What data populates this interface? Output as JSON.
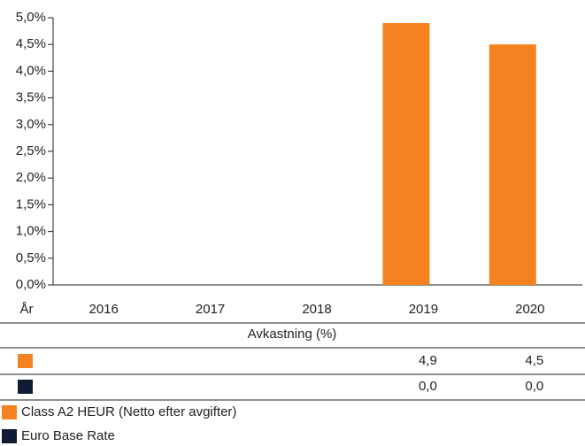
{
  "chart_data": {
    "type": "bar",
    "x_label": "År",
    "table_header": "Avkastning (%)",
    "categories": [
      "2016",
      "2017",
      "2018",
      "2019",
      "2020"
    ],
    "series": [
      {
        "name": "Class A2 HEUR (Netto efter avgifter)",
        "color": "#f58220",
        "values": [
          null,
          null,
          null,
          4.9,
          4.5
        ],
        "value_labels": [
          null,
          null,
          null,
          "4,9",
          "4,5"
        ]
      },
      {
        "name": "Euro Base Rate",
        "color": "#0f1c33",
        "values": [
          null,
          null,
          null,
          0.0,
          0.0
        ],
        "value_labels": [
          null,
          null,
          null,
          "0,0",
          "0,0"
        ]
      }
    ],
    "ylim": [
      0,
      5
    ],
    "yticks": [
      {
        "value": 0,
        "label": "0,0%"
      },
      {
        "value": 0.5,
        "label": "0,5%"
      },
      {
        "value": 1,
        "label": "1,0%"
      },
      {
        "value": 1.5,
        "label": "1,5%"
      },
      {
        "value": 2,
        "label": "2,0%"
      },
      {
        "value": 2.5,
        "label": "2,5%"
      },
      {
        "value": 3,
        "label": "3,0%"
      },
      {
        "value": 3.5,
        "label": "3,5%"
      },
      {
        "value": 4,
        "label": "4,0%"
      },
      {
        "value": 4.5,
        "label": "4,5%"
      },
      {
        "value": 5,
        "label": "5,0%"
      }
    ],
    "grid": false
  }
}
